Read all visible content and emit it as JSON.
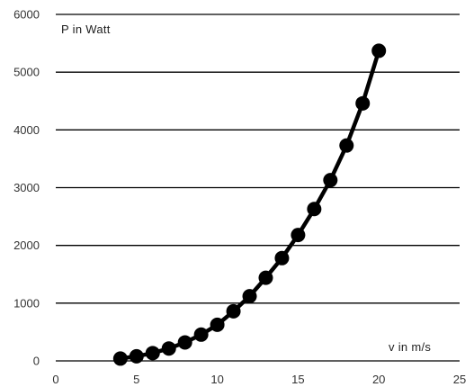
{
  "chart_data": {
    "type": "line",
    "title": "",
    "xlabel": "v in m/s",
    "ylabel": "P in Watt",
    "xlim": [
      0,
      25
    ],
    "ylim": [
      0,
      6000
    ],
    "x_ticks": [
      "0",
      "5",
      "10",
      "15",
      "20",
      "25"
    ],
    "y_ticks": [
      "0",
      "1000",
      "2000",
      "3000",
      "4000",
      "5000",
      "6000"
    ],
    "grid": {
      "horizontal": true,
      "vertical": false
    },
    "legend": "none",
    "series": [
      {
        "x": [
          4,
          5,
          6,
          7,
          8,
          9,
          10,
          11,
          12,
          13,
          14,
          15,
          16,
          17,
          18,
          19,
          20
        ],
        "values": [
          40,
          80,
          135,
          215,
          320,
          455,
          625,
          860,
          1120,
          1440,
          1780,
          2180,
          2630,
          3130,
          3730,
          4460,
          5370
        ],
        "color": "#000000",
        "marker": "circle"
      }
    ]
  }
}
